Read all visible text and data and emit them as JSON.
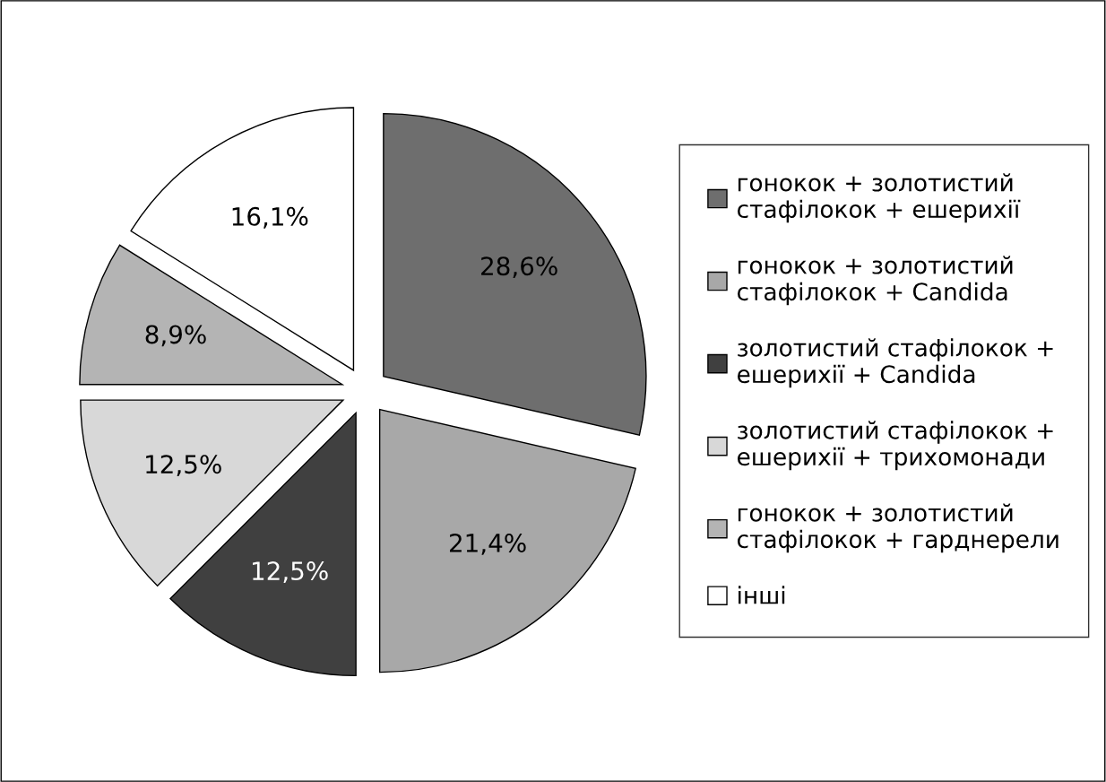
{
  "chart_data": {
    "type": "pie",
    "categories": [
      "гонокок + золотистий\nстафілокок + ешерихії",
      "гонокок + золотистий\nстафілокок + Candida",
      "золотистий стафілокок +\nешерихії + Candida",
      "золотистий стафілокок +\nешерихії + трихомонади",
      "гонокок + золотистий\nстафілокок + гарднерели",
      "інші"
    ],
    "values": [
      28.6,
      21.4,
      12.5,
      12.5,
      8.9,
      16.1
    ],
    "value_labels": [
      "28,6%",
      "21,4%",
      "12,5%",
      "12,5%",
      "8,9%",
      "16,1%"
    ],
    "colors": [
      "#6e6e6e",
      "#a8a8a8",
      "#404040",
      "#d8d8d8",
      "#b4b4b4",
      "#ffffff"
    ],
    "legend": "right"
  }
}
